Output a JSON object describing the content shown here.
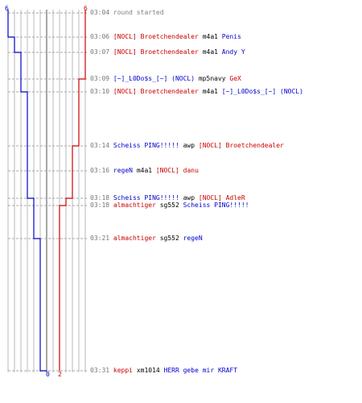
{
  "colors": {
    "team_red": "#cc0000",
    "team_blue": "#0000cc",
    "grid": "#b8b8b8",
    "center_line": "#808080",
    "guide": "#aaaaaa",
    "time": "#777777"
  },
  "score": {
    "red_start": "6",
    "blue_start": "6",
    "blue_end": "0",
    "red_end": "2"
  },
  "events": [
    {
      "time": "03:04",
      "parts": [
        {
          "text": "round started",
          "c": "gray"
        }
      ]
    },
    {
      "time": "03:06",
      "parts": [
        {
          "text": "[NOCL] Broetchendealer",
          "c": "red"
        },
        {
          "text": " m4a1 ",
          "c": "blk"
        },
        {
          "text": "Penis",
          "c": "blue"
        }
      ]
    },
    {
      "time": "03:07",
      "parts": [
        {
          "text": "[NOCL] Broetchendealer",
          "c": "red"
        },
        {
          "text": " m4a1 ",
          "c": "blk"
        },
        {
          "text": "Andy Y",
          "c": "blue"
        }
      ]
    },
    {
      "time": "03:09",
      "parts": [
        {
          "text": "[~]_L0Do$s_[~] (NOCL)",
          "c": "blue"
        },
        {
          "text": " mp5navy ",
          "c": "blk"
        },
        {
          "text": "GeX",
          "c": "red"
        }
      ]
    },
    {
      "time": "03:10",
      "parts": [
        {
          "text": "[NOCL] Broetchendealer",
          "c": "red"
        },
        {
          "text": " m4a1 ",
          "c": "blk"
        },
        {
          "text": "[~]_L0Do$s_[~] (NOCL)",
          "c": "blue"
        }
      ]
    },
    {
      "time": "03:14",
      "parts": [
        {
          "text": "Scheiss PING!!!!!",
          "c": "blue"
        },
        {
          "text": " awp ",
          "c": "blk"
        },
        {
          "text": "[NOCL] Broetchendealer",
          "c": "red"
        }
      ]
    },
    {
      "time": "03:16",
      "parts": [
        {
          "text": "regeN",
          "c": "blue"
        },
        {
          "text": " m4a1 ",
          "c": "blk"
        },
        {
          "text": "[NOCL] danu",
          "c": "red"
        }
      ]
    },
    {
      "time": "03:18",
      "parts": [
        {
          "text": "Scheiss PING!!!!!",
          "c": "blue"
        },
        {
          "text": " awp ",
          "c": "blk"
        },
        {
          "text": "[NOCL] AdleR",
          "c": "red"
        }
      ]
    },
    {
      "time": "03:18",
      "parts": [
        {
          "text": "almachtiger",
          "c": "red"
        },
        {
          "text": " sg552 ",
          "c": "blk"
        },
        {
          "text": "Scheiss PING!!!!!",
          "c": "blue"
        }
      ]
    },
    {
      "time": "03:21",
      "parts": [
        {
          "text": "almachtiger",
          "c": "red"
        },
        {
          "text": " sg552 ",
          "c": "blk"
        },
        {
          "text": "regeN",
          "c": "blue"
        }
      ]
    },
    {
      "time": "03:31",
      "parts": [
        {
          "text": "keppi",
          "c": "red"
        },
        {
          "text": " xm1014 ",
          "c": "blk"
        },
        {
          "text": "HERR gebe mir KRAFT",
          "c": "blue"
        }
      ]
    }
  ]
}
